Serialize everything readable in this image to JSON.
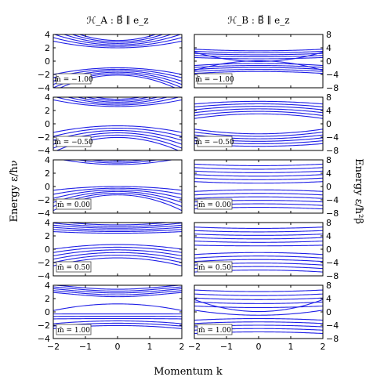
{
  "chart_data": {
    "type": "line",
    "columns": [
      {
        "title": "ℋ_A : B⃗ ∥ e_z",
        "ylim": [
          -4,
          4
        ],
        "yticks": [
          -4,
          -2,
          0,
          2,
          4
        ],
        "ytick_side": "left"
      },
      {
        "title": "ℋ_B : B⃗ ∥ e_z",
        "ylim": [
          -8,
          8
        ],
        "yticks": [
          -8,
          -4,
          0,
          4,
          8
        ],
        "ytick_side": "right"
      }
    ],
    "rows": [
      {
        "label": "m̄ = −1.00",
        "m": -1.0
      },
      {
        "label": "m̄ = −0.50",
        "m": -0.5
      },
      {
        "label": "m̄ = 0.00",
        "m": 0.0
      },
      {
        "label": "m̄ = 0.50",
        "m": 0.5
      },
      {
        "label": "m̄ = 1.00",
        "m": 1.0
      }
    ],
    "xlim": [
      -2,
      2
    ],
    "xticks": [
      -2,
      -1,
      0,
      1,
      2
    ],
    "xlabel": "Momentum k",
    "ylabel_left": "Energy ε/ħν",
    "ylabel_right": "Energy ε/ħ²β",
    "series_color": "#1f1fe6",
    "levels_per_branch": 6,
    "panel_A_band_edges_at_k0": [
      {
        "m": -1.0,
        "upper_min": 2.0,
        "lower_max": -1.0
      },
      {
        "m": -0.5,
        "upper_min": 2.6,
        "lower_max": -0.3
      },
      {
        "m": 0.0,
        "upper_min": 3.3,
        "lower_max": 0.0
      },
      {
        "m": 0.5,
        "upper_min": 2.4,
        "lower_max": 0.7
      },
      {
        "m": 1.0,
        "upper_min": 1.2,
        "lower_max": 0.0
      }
    ],
    "panel_B_band_edges_at_k0": [
      {
        "m": -1.0,
        "upper_min": 0.0,
        "lower_max": 0.0
      },
      {
        "m": -0.5,
        "upper_min": 3.0,
        "lower_max": -3.0
      },
      {
        "m": 0.0,
        "upper_min": 1.0,
        "lower_max": -1.0
      },
      {
        "m": 0.5,
        "upper_min": 1.0,
        "lower_max": -1.0
      },
      {
        "m": 1.0,
        "upper_min": 0.0,
        "lower_max": -1.0
      }
    ]
  }
}
